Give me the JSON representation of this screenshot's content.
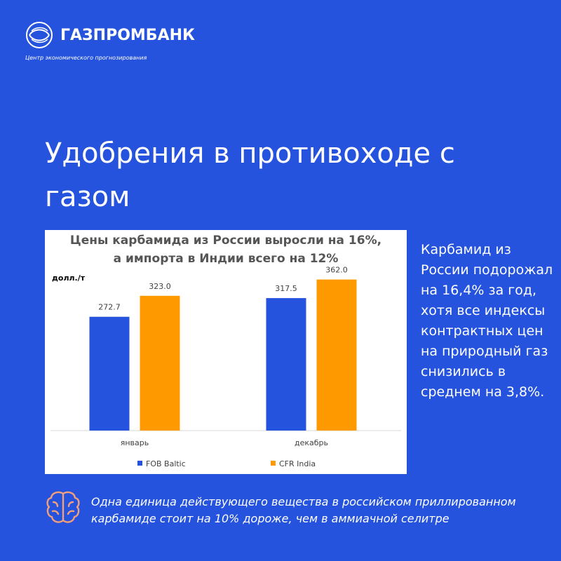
{
  "brand": {
    "name": "ГАЗПРОМБАНК",
    "subtitle": "Центр экономического прогнозирования"
  },
  "headline": "Удобрения в противоходе с газом",
  "side_text": "Карбамид из России подорожал на 16,4% за год, хотя все индексы контрактных цен на природный газ снизились в среднем на 3,8%.",
  "footnote": "Одна единица действующего вещества в российском приллированном карбамиде стоит на 10% дороже, чем в аммиачной селитре",
  "icons": {
    "logo": "gazprombank-logo-icon",
    "brain": "brain-icon"
  },
  "colors": {
    "background": "#2553dd",
    "fob": "#2553dd",
    "cfr": "#ff9900",
    "accent_icon": "#f4a07a"
  },
  "chart_data": {
    "type": "bar",
    "title_lines": [
      "Цены карбамида из России выросли на 16%,",
      "а импорта в Индии всего на 12%"
    ],
    "ylabel": "долл./т",
    "xlabel": "",
    "categories": [
      "январь",
      "декабрь"
    ],
    "series": [
      {
        "name": "FOB Baltic",
        "values": [
          272.7,
          317.5
        ],
        "labels": [
          "272.7",
          "317.5"
        ],
        "color": "#2553dd"
      },
      {
        "name": "CFR India",
        "values": [
          323.0,
          362.0
        ],
        "labels": [
          "323.0",
          "362.0"
        ],
        "color": "#ff9900"
      }
    ],
    "ylim": [
      0,
      400
    ],
    "grid": false,
    "legend": "bottom"
  }
}
